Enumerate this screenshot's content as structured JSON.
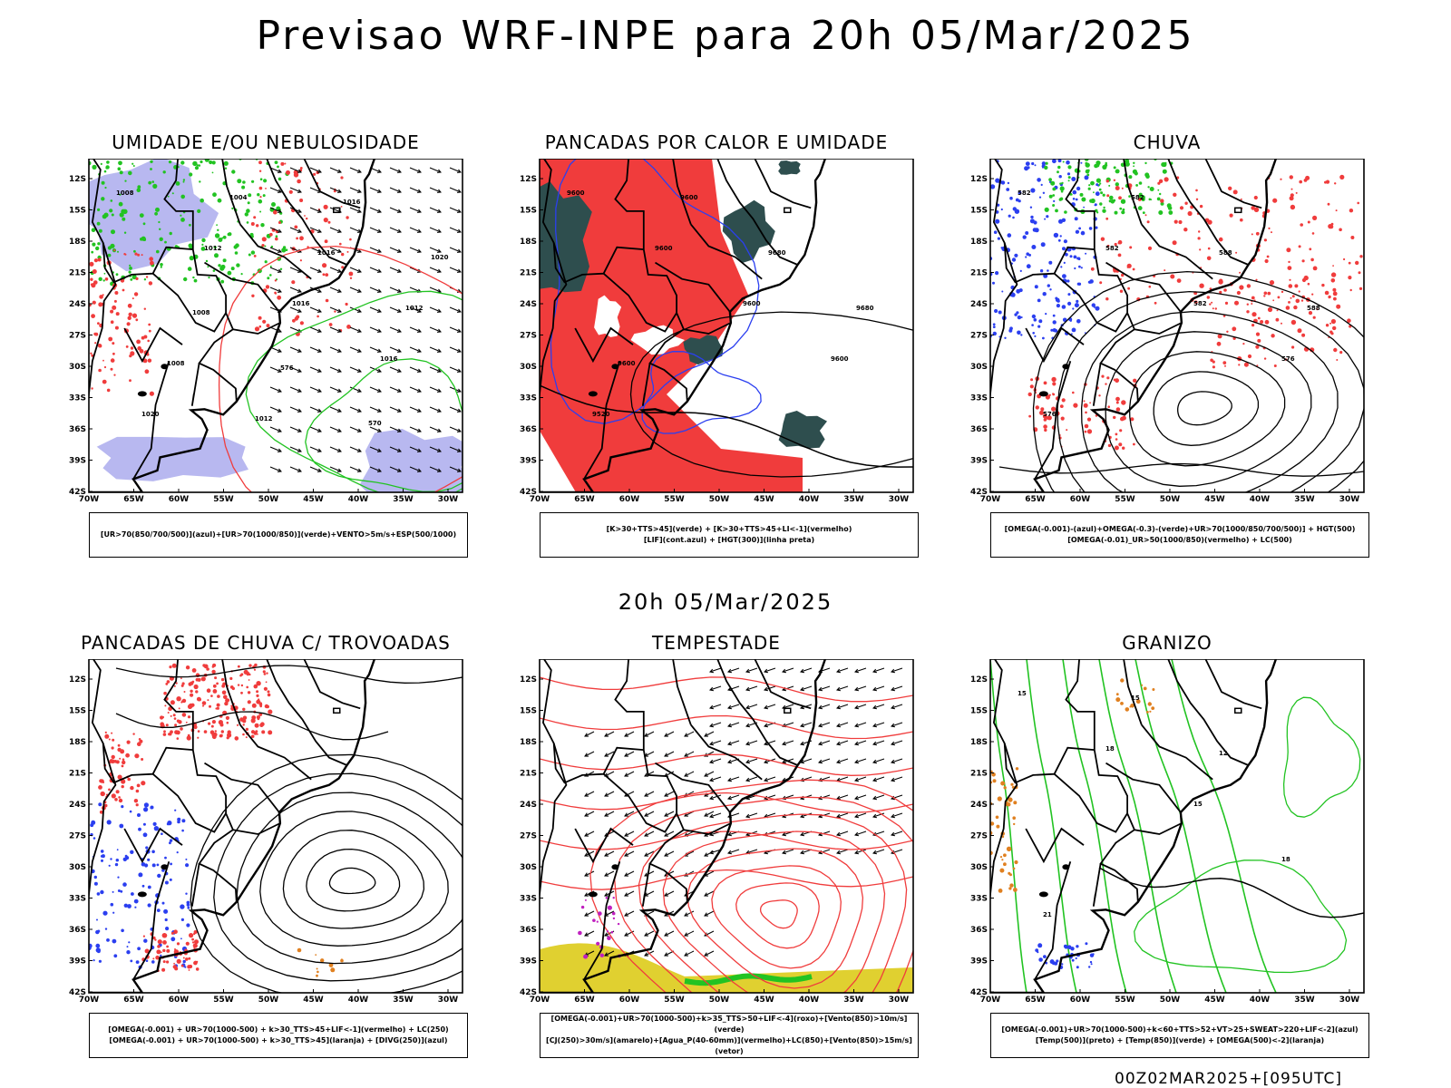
{
  "header": {
    "title": "Previsao WRF-INPE  para 20h 05/Mar/2025"
  },
  "mid": {
    "title": "20h 05/Mar/2025"
  },
  "footer": {
    "run": "00Z02MAR2025+[095UTC]"
  },
  "axes": {
    "lat": [
      "12S",
      "15S",
      "18S",
      "21S",
      "24S",
      "27S",
      "30S",
      "33S",
      "36S",
      "39S",
      "42S"
    ],
    "lon": [
      "70W",
      "65W",
      "60W",
      "55W",
      "50W",
      "45W",
      "40W",
      "35W",
      "30W"
    ]
  },
  "colors": {
    "red": "#f03c3c",
    "green": "#22c322",
    "blue": "#2b3ff0",
    "lavender": "#b8b8f0",
    "darkteal": "#2e4e4e",
    "yellow": "#e0d030",
    "orange": "#e08020",
    "purple": "#c020c0"
  },
  "panels": [
    {
      "title": "UMIDADE E/OU NEBULOSIDADE",
      "legend": [
        "[UR>70(850/700/500)](azul)+[UR>70(1000/850)](verde)+VENTO>5m/s+ESP(500/1000)"
      ],
      "labels": [
        "1008",
        "1012",
        "1016",
        "1016",
        "1020",
        "1004",
        "1016",
        "1012",
        "1008",
        "1012",
        "1016",
        "1020",
        "1008",
        "576",
        "570"
      ]
    },
    {
      "title": "PANCADAS POR CALOR E UMIDADE",
      "legend": [
        "[K>30+TTS>45](verde) + [K>30+TTS>45+LI<-1](vermelho)",
        "[LIF](cont.azul) + [HGT(300)](linha preta)"
      ],
      "labels": [
        "9600",
        "9600",
        "9600",
        "9600",
        "9520",
        "9600",
        "9680",
        "9680",
        "9600"
      ]
    },
    {
      "title": "CHUVA",
      "legend": [
        "[OMEGA(-0.001)-(azul)+OMEGA(-0.3)-(verde)+UR>70(1000/850/700/500)] + HGT(500)",
        "[OMEGA(-0.01)_UR>50(1000/850)(vermelho) + LC(500)"
      ],
      "labels": [
        "582",
        "582",
        "582",
        "576",
        "576",
        "582",
        "588",
        "588"
      ]
    },
    {
      "title": "PANCADAS DE CHUVA C/ TROVOADAS",
      "legend": [
        "[OMEGA(-0.001) + UR>70(1000-500) + k>30_TTS>45+LIF<-1](vermelho) + LC(250)",
        "[OMEGA(-0.001) + UR>70(1000-500) + k>30_TTS>45](laranja) + [DIVG(250)](azul)"
      ],
      "labels": []
    },
    {
      "title": "TEMPESTADE",
      "legend": [
        "[OMEGA(-0.001)+UR>70(1000-500)+k>35_TTS>50+LIF<-4](roxo)+[Vento(850)>10m/s](verde)",
        "[CJ(250)>30m/s](amarelo)+[Agua_P(40-60mm)](vermelho)+LC(850)+[Vento(850)>15m/s](vetor)"
      ],
      "labels": []
    },
    {
      "title": "GRANIZO",
      "legend": [
        "[OMEGA(-0.001)+UR>70(1000-500)+k<60+TTS>52+VT>25+SWEAT>220+LIF<-2](azul)",
        "[Temp(500)](preto) + [Temp(850)](verde) + [OMEGA(500)<-2](laranja)"
      ],
      "labels": [
        "15",
        "18",
        "15",
        "18",
        "21",
        "15",
        "12"
      ]
    }
  ]
}
